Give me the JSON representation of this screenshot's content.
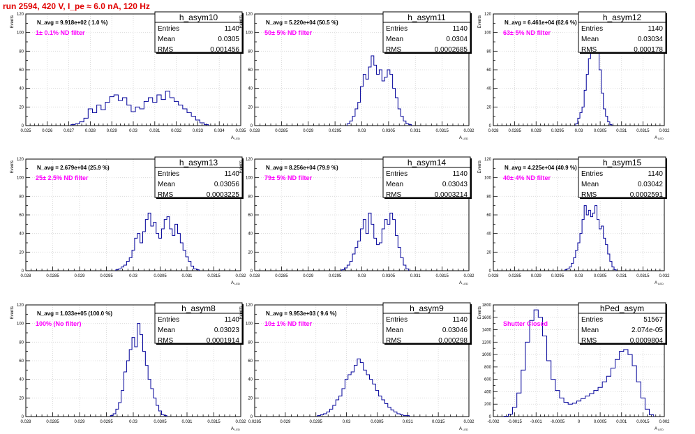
{
  "header": {
    "title": "run 2594,   420 V, I_pe ≈ 6.0 nA, 120 Hz",
    "color": "#e00000"
  },
  "colors": {
    "hist": "#000099",
    "grid": "#d6d6d6",
    "filter_label": "#ff00ff",
    "axis": "#000000"
  },
  "stats_labels": {
    "entries": "Entries",
    "mean": "Mean",
    "rms": "RMS"
  },
  "common": {
    "ylabel": "Events",
    "xlabel": "A",
    "xlabel_sub": "LED"
  },
  "chart_data": [
    {
      "type": "bar",
      "name": "h_asym10",
      "navg": "N_avg = 9.918e+02 ( 1.0 %)",
      "filter": "1± 0.1% ND filter",
      "stats": {
        "entries": "1140",
        "mean": "0.0305",
        "rms": "0.001456"
      },
      "xlim": [
        0.025,
        0.035
      ],
      "ylim": [
        0,
        120
      ],
      "xticks": [
        0.025,
        0.026,
        0.027,
        0.028,
        0.029,
        0.03,
        0.031,
        0.032,
        0.033,
        0.034,
        0.035
      ],
      "xticklabels": [
        "0.025",
        "0.026",
        "0.027",
        "0.028",
        "0.029",
        "0.03",
        "0.031",
        "0.032",
        "0.033",
        "0.034",
        "0.035"
      ],
      "yticks": [
        0,
        20,
        40,
        60,
        80,
        100,
        120
      ],
      "x": [
        0.0272,
        0.0274,
        0.0276,
        0.0278,
        0.028,
        0.0282,
        0.0284,
        0.0286,
        0.0288,
        0.029,
        0.0292,
        0.0294,
        0.0296,
        0.0298,
        0.03,
        0.0302,
        0.0304,
        0.0306,
        0.0308,
        0.031,
        0.0312,
        0.0314,
        0.0316,
        0.0318,
        0.032,
        0.0322,
        0.0324,
        0.0326,
        0.0328,
        0.033,
        0.0332,
        0.0334
      ],
      "values": [
        1,
        2,
        4,
        8,
        18,
        14,
        22,
        17,
        25,
        31,
        33,
        27,
        30,
        22,
        15,
        20,
        18,
        26,
        30,
        25,
        33,
        28,
        37,
        30,
        26,
        22,
        18,
        14,
        10,
        6,
        3,
        1
      ]
    },
    {
      "type": "bar",
      "name": "h_asym11",
      "navg": "N_avg = 5.220e+04 (50.5 %)",
      "filter": "50± 5% ND filter",
      "stats": {
        "entries": "1140",
        "mean": "0.0304",
        "rms": "0.0002685"
      },
      "xlim": [
        0.028,
        0.032
      ],
      "ylim": [
        0,
        120
      ],
      "xticks": [
        0.028,
        0.0285,
        0.029,
        0.0295,
        0.03,
        0.0305,
        0.031,
        0.0315,
        0.032
      ],
      "xticklabels": [
        "0.028",
        "0.0285",
        "0.029",
        "0.0295",
        "0.03",
        "0.0305",
        "0.031",
        "0.0315",
        "0.032"
      ],
      "yticks": [
        0,
        20,
        40,
        60,
        80,
        100,
        120
      ],
      "x": [
        0.02975,
        0.0298,
        0.02985,
        0.0299,
        0.02995,
        0.03,
        0.03005,
        0.0301,
        0.03015,
        0.0302,
        0.03025,
        0.0303,
        0.03035,
        0.0304,
        0.03045,
        0.0305,
        0.03055,
        0.0306,
        0.03065,
        0.0307,
        0.03075,
        0.0308,
        0.03085,
        0.0309
      ],
      "values": [
        2,
        5,
        10,
        18,
        25,
        42,
        55,
        50,
        63,
        75,
        65,
        55,
        60,
        48,
        52,
        60,
        55,
        40,
        30,
        18,
        10,
        5,
        2,
        1
      ]
    },
    {
      "type": "bar",
      "name": "h_asym12",
      "navg": "N_avg = 6.461e+04 (62.6 %)",
      "filter": "63± 5% ND filter",
      "stats": {
        "entries": "1140",
        "mean": "0.03034",
        "rms": "0.000178"
      },
      "xlim": [
        0.028,
        0.032
      ],
      "ylim": [
        0,
        120
      ],
      "xticks": [
        0.028,
        0.0285,
        0.029,
        0.0295,
        0.03,
        0.0305,
        0.031,
        0.0315,
        0.032
      ],
      "xticklabels": [
        "0.028",
        "0.0285",
        "0.029",
        "0.0295",
        "0.03",
        "0.0305",
        "0.031",
        "0.0315",
        "0.032"
      ],
      "yticks": [
        0,
        20,
        40,
        60,
        80,
        100,
        120
      ],
      "x": [
        0.02995,
        0.03,
        0.03005,
        0.0301,
        0.03015,
        0.0302,
        0.03025,
        0.0303,
        0.03035,
        0.0304,
        0.03045,
        0.0305,
        0.03055,
        0.0306,
        0.03065,
        0.0307,
        0.03075
      ],
      "values": [
        2,
        8,
        14,
        20,
        38,
        55,
        72,
        90,
        98,
        110,
        80,
        60,
        35,
        18,
        10,
        4,
        1
      ]
    },
    {
      "type": "bar",
      "name": "h_asym13",
      "navg": "N_avg = 2.679e+04 (25.9 %)",
      "filter": "25± 2.5% ND filter",
      "stats": {
        "entries": "1140",
        "mean": "0.03056",
        "rms": "0.0003225"
      },
      "xlim": [
        0.028,
        0.032
      ],
      "ylim": [
        0,
        120
      ],
      "xticks": [
        0.028,
        0.0285,
        0.029,
        0.0295,
        0.03,
        0.0305,
        0.031,
        0.0315,
        0.032
      ],
      "xticklabels": [
        "0.028",
        "0.0285",
        "0.029",
        "0.0295",
        "0.03",
        "0.0305",
        "0.031",
        "0.0315",
        "0.032"
      ],
      "yticks": [
        0,
        20,
        40,
        60,
        80,
        100,
        120
      ],
      "x": [
        0.0297,
        0.02975,
        0.0298,
        0.02985,
        0.0299,
        0.02995,
        0.03,
        0.03005,
        0.0301,
        0.03015,
        0.0302,
        0.03025,
        0.0303,
        0.03035,
        0.0304,
        0.03045,
        0.0305,
        0.03055,
        0.0306,
        0.03065,
        0.0307,
        0.03075,
        0.0308,
        0.03085,
        0.0309,
        0.03095,
        0.031,
        0.03105,
        0.0311,
        0.03115,
        0.0312
      ],
      "values": [
        1,
        2,
        4,
        6,
        10,
        14,
        22,
        35,
        40,
        30,
        42,
        55,
        62,
        48,
        52,
        40,
        35,
        45,
        55,
        58,
        45,
        38,
        50,
        40,
        30,
        22,
        15,
        10,
        5,
        2,
        1
      ]
    },
    {
      "type": "bar",
      "name": "h_asym14",
      "navg": "N_avg = 8.256e+04 (79.9 %)",
      "filter": "79± 5% ND filter",
      "stats": {
        "entries": "1140",
        "mean": "0.03043",
        "rms": "0.0003214"
      },
      "xlim": [
        0.028,
        0.032
      ],
      "ylim": [
        0,
        120
      ],
      "xticks": [
        0.028,
        0.0285,
        0.029,
        0.0295,
        0.03,
        0.0305,
        0.031,
        0.0315,
        0.032
      ],
      "xticklabels": [
        "0.028",
        "0.0285",
        "0.029",
        "0.0295",
        "0.03",
        "0.0305",
        "0.031",
        "0.0315",
        "0.032"
      ],
      "yticks": [
        0,
        20,
        40,
        60,
        80,
        100,
        120
      ],
      "x": [
        0.02965,
        0.0297,
        0.02975,
        0.0298,
        0.02985,
        0.0299,
        0.02995,
        0.03,
        0.03005,
        0.0301,
        0.03015,
        0.0302,
        0.03025,
        0.0303,
        0.03035,
        0.0304,
        0.03045,
        0.0305,
        0.03055,
        0.0306,
        0.03065,
        0.0307,
        0.03075,
        0.0308,
        0.03085
      ],
      "values": [
        1,
        3,
        6,
        10,
        18,
        25,
        32,
        45,
        55,
        40,
        62,
        50,
        35,
        28,
        30,
        45,
        55,
        50,
        62,
        55,
        38,
        25,
        14,
        6,
        2
      ]
    },
    {
      "type": "bar",
      "name": "h_asym15",
      "navg": "N_avg = 4.225e+04 (40.9 %)",
      "filter": "40± 4% ND filter",
      "stats": {
        "entries": "1140",
        "mean": "0.03042",
        "rms": "0.0002591"
      },
      "xlim": [
        0.028,
        0.032
      ],
      "ylim": [
        0,
        120
      ],
      "xticks": [
        0.028,
        0.0285,
        0.029,
        0.0295,
        0.03,
        0.0305,
        0.031,
        0.0315,
        0.032
      ],
      "xticklabels": [
        "0.028",
        "0.0285",
        "0.029",
        "0.0295",
        "0.03",
        "0.0305",
        "0.031",
        "0.0315",
        "0.032"
      ],
      "yticks": [
        0,
        20,
        40,
        60,
        80,
        100,
        120
      ],
      "x": [
        0.0297,
        0.02975,
        0.0298,
        0.02985,
        0.0299,
        0.02995,
        0.03,
        0.03005,
        0.0301,
        0.03015,
        0.0302,
        0.03025,
        0.0303,
        0.03035,
        0.0304,
        0.03045,
        0.0305,
        0.03055,
        0.0306,
        0.03065,
        0.0307,
        0.03075,
        0.0308,
        0.03085
      ],
      "values": [
        1,
        2,
        4,
        8,
        14,
        22,
        30,
        40,
        55,
        70,
        60,
        65,
        58,
        62,
        70,
        55,
        45,
        48,
        35,
        28,
        18,
        10,
        4,
        1
      ]
    },
    {
      "type": "bar",
      "name": "h_asym8",
      "navg": "N_avg = 1.033e+05 (100.0 %)",
      "filter": "100% (No filter)",
      "stats": {
        "entries": "1140",
        "mean": "0.03023",
        "rms": "0.0001914"
      },
      "xlim": [
        0.028,
        0.032
      ],
      "ylim": [
        0,
        120
      ],
      "xticks": [
        0.028,
        0.0285,
        0.029,
        0.0295,
        0.03,
        0.0305,
        0.031,
        0.0315,
        0.032
      ],
      "xticklabels": [
        "0.028",
        "0.0285",
        "0.029",
        "0.0295",
        "0.03",
        "0.0305",
        "0.031",
        "0.0315",
        "0.032"
      ],
      "yticks": [
        0,
        20,
        40,
        60,
        80,
        100,
        120
      ],
      "x": [
        0.0296,
        0.02965,
        0.0297,
        0.02975,
        0.0298,
        0.02985,
        0.0299,
        0.02995,
        0.03,
        0.03005,
        0.0301,
        0.03015,
        0.0302,
        0.03025,
        0.0303,
        0.03035,
        0.0304,
        0.03045,
        0.0305,
        0.03055,
        0.0306
      ],
      "values": [
        1,
        3,
        8,
        15,
        28,
        48,
        60,
        72,
        85,
        75,
        100,
        88,
        70,
        55,
        40,
        30,
        20,
        12,
        6,
        2,
        1
      ]
    },
    {
      "type": "bar",
      "name": "h_asym9",
      "navg": "N_avg = 9.953e+03 ( 9.6 %)",
      "filter": "10± 1% ND filter",
      "stats": {
        "entries": "1140",
        "mean": "0.03046",
        "rms": "0.000298"
      },
      "xlim": [
        0.0285,
        0.032
      ],
      "ylim": [
        0,
        120
      ],
      "xticks": [
        0.0285,
        0.029,
        0.0295,
        0.03,
        0.0305,
        0.031,
        0.0315,
        0.032
      ],
      "xticklabels": [
        "0.0285",
        "0.029",
        "0.0295",
        "0.03",
        "0.0305",
        "0.031",
        "0.0315",
        "0.032"
      ],
      "yticks": [
        0,
        20,
        40,
        60,
        80,
        100,
        120
      ],
      "x": [
        0.02955,
        0.0296,
        0.02965,
        0.0297,
        0.02975,
        0.0298,
        0.02985,
        0.0299,
        0.02995,
        0.03,
        0.03005,
        0.0301,
        0.03015,
        0.0302,
        0.03025,
        0.0303,
        0.03035,
        0.0304,
        0.03045,
        0.0305,
        0.03055,
        0.0306,
        0.03065,
        0.0307,
        0.03075,
        0.0308,
        0.03085,
        0.0309,
        0.03095,
        0.031
      ],
      "values": [
        1,
        2,
        3,
        5,
        8,
        12,
        18,
        22,
        30,
        40,
        45,
        48,
        55,
        62,
        58,
        50,
        45,
        40,
        35,
        28,
        22,
        18,
        14,
        10,
        7,
        5,
        3,
        2,
        1,
        1
      ]
    },
    {
      "type": "bar",
      "name": "hPed_asym",
      "navg": "",
      "filter": "Shutter Closed",
      "stats": {
        "entries": "51567",
        "mean": "2.074e-05",
        "rms": "0.0009804"
      },
      "xlim": [
        -0.002,
        0.002
      ],
      "ylim": [
        0,
        1800
      ],
      "xticks": [
        -0.002,
        -0.0015,
        -0.001,
        -0.0005,
        0,
        0.0005,
        0.001,
        0.0015,
        0.002
      ],
      "xticklabels": [
        "-0.002",
        "-0.0015",
        "-0.001",
        "-0.0005",
        "0",
        "0.0005",
        "0.001",
        "0.0015",
        "0.002"
      ],
      "yticks": [
        0,
        200,
        400,
        600,
        800,
        1000,
        1200,
        1400,
        1600,
        1800
      ],
      "x": [
        -0.0017,
        -0.0016,
        -0.0015,
        -0.0014,
        -0.0013,
        -0.0012,
        -0.0011,
        -0.001,
        -0.0009,
        -0.0008,
        -0.0007,
        -0.0006,
        -0.0005,
        -0.0004,
        -0.0003,
        -0.0002,
        -0.0001,
        0,
        0.0001,
        0.0002,
        0.0003,
        0.0004,
        0.0005,
        0.0006,
        0.0007,
        0.0008,
        0.0009,
        0.001,
        0.0011,
        0.0012,
        0.0013,
        0.0014,
        0.0015,
        0.0016,
        0.0017
      ],
      "values": [
        5,
        40,
        150,
        380,
        750,
        1200,
        1550,
        1720,
        1600,
        1300,
        900,
        600,
        420,
        300,
        230,
        200,
        215,
        250,
        290,
        330,
        370,
        420,
        470,
        560,
        650,
        780,
        920,
        1050,
        1080,
        1000,
        820,
        560,
        300,
        120,
        30
      ]
    }
  ]
}
